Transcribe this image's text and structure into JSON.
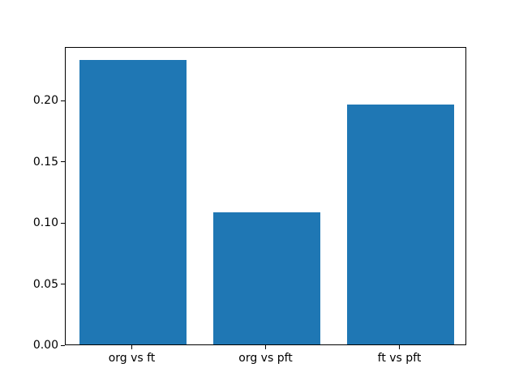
{
  "chart_data": {
    "type": "bar",
    "title": "",
    "xlabel": "",
    "ylabel": "",
    "categories": [
      "org vs ft",
      "org vs pft",
      "ft vs pft"
    ],
    "values": [
      0.233,
      0.108,
      0.196
    ],
    "ylim": [
      0,
      0.244
    ],
    "xlim": [
      -0.5,
      2.5
    ],
    "yticks": [
      0.0,
      0.05,
      0.1,
      0.15,
      0.2
    ],
    "ytick_labels": [
      "0.00",
      "0.05",
      "0.10",
      "0.15",
      "0.20"
    ],
    "bar_width_fraction": 0.8,
    "bar_color": "#1f77b4",
    "frame_color": "#000000",
    "background_color": "#ffffff",
    "grid": false,
    "legend": null
  }
}
